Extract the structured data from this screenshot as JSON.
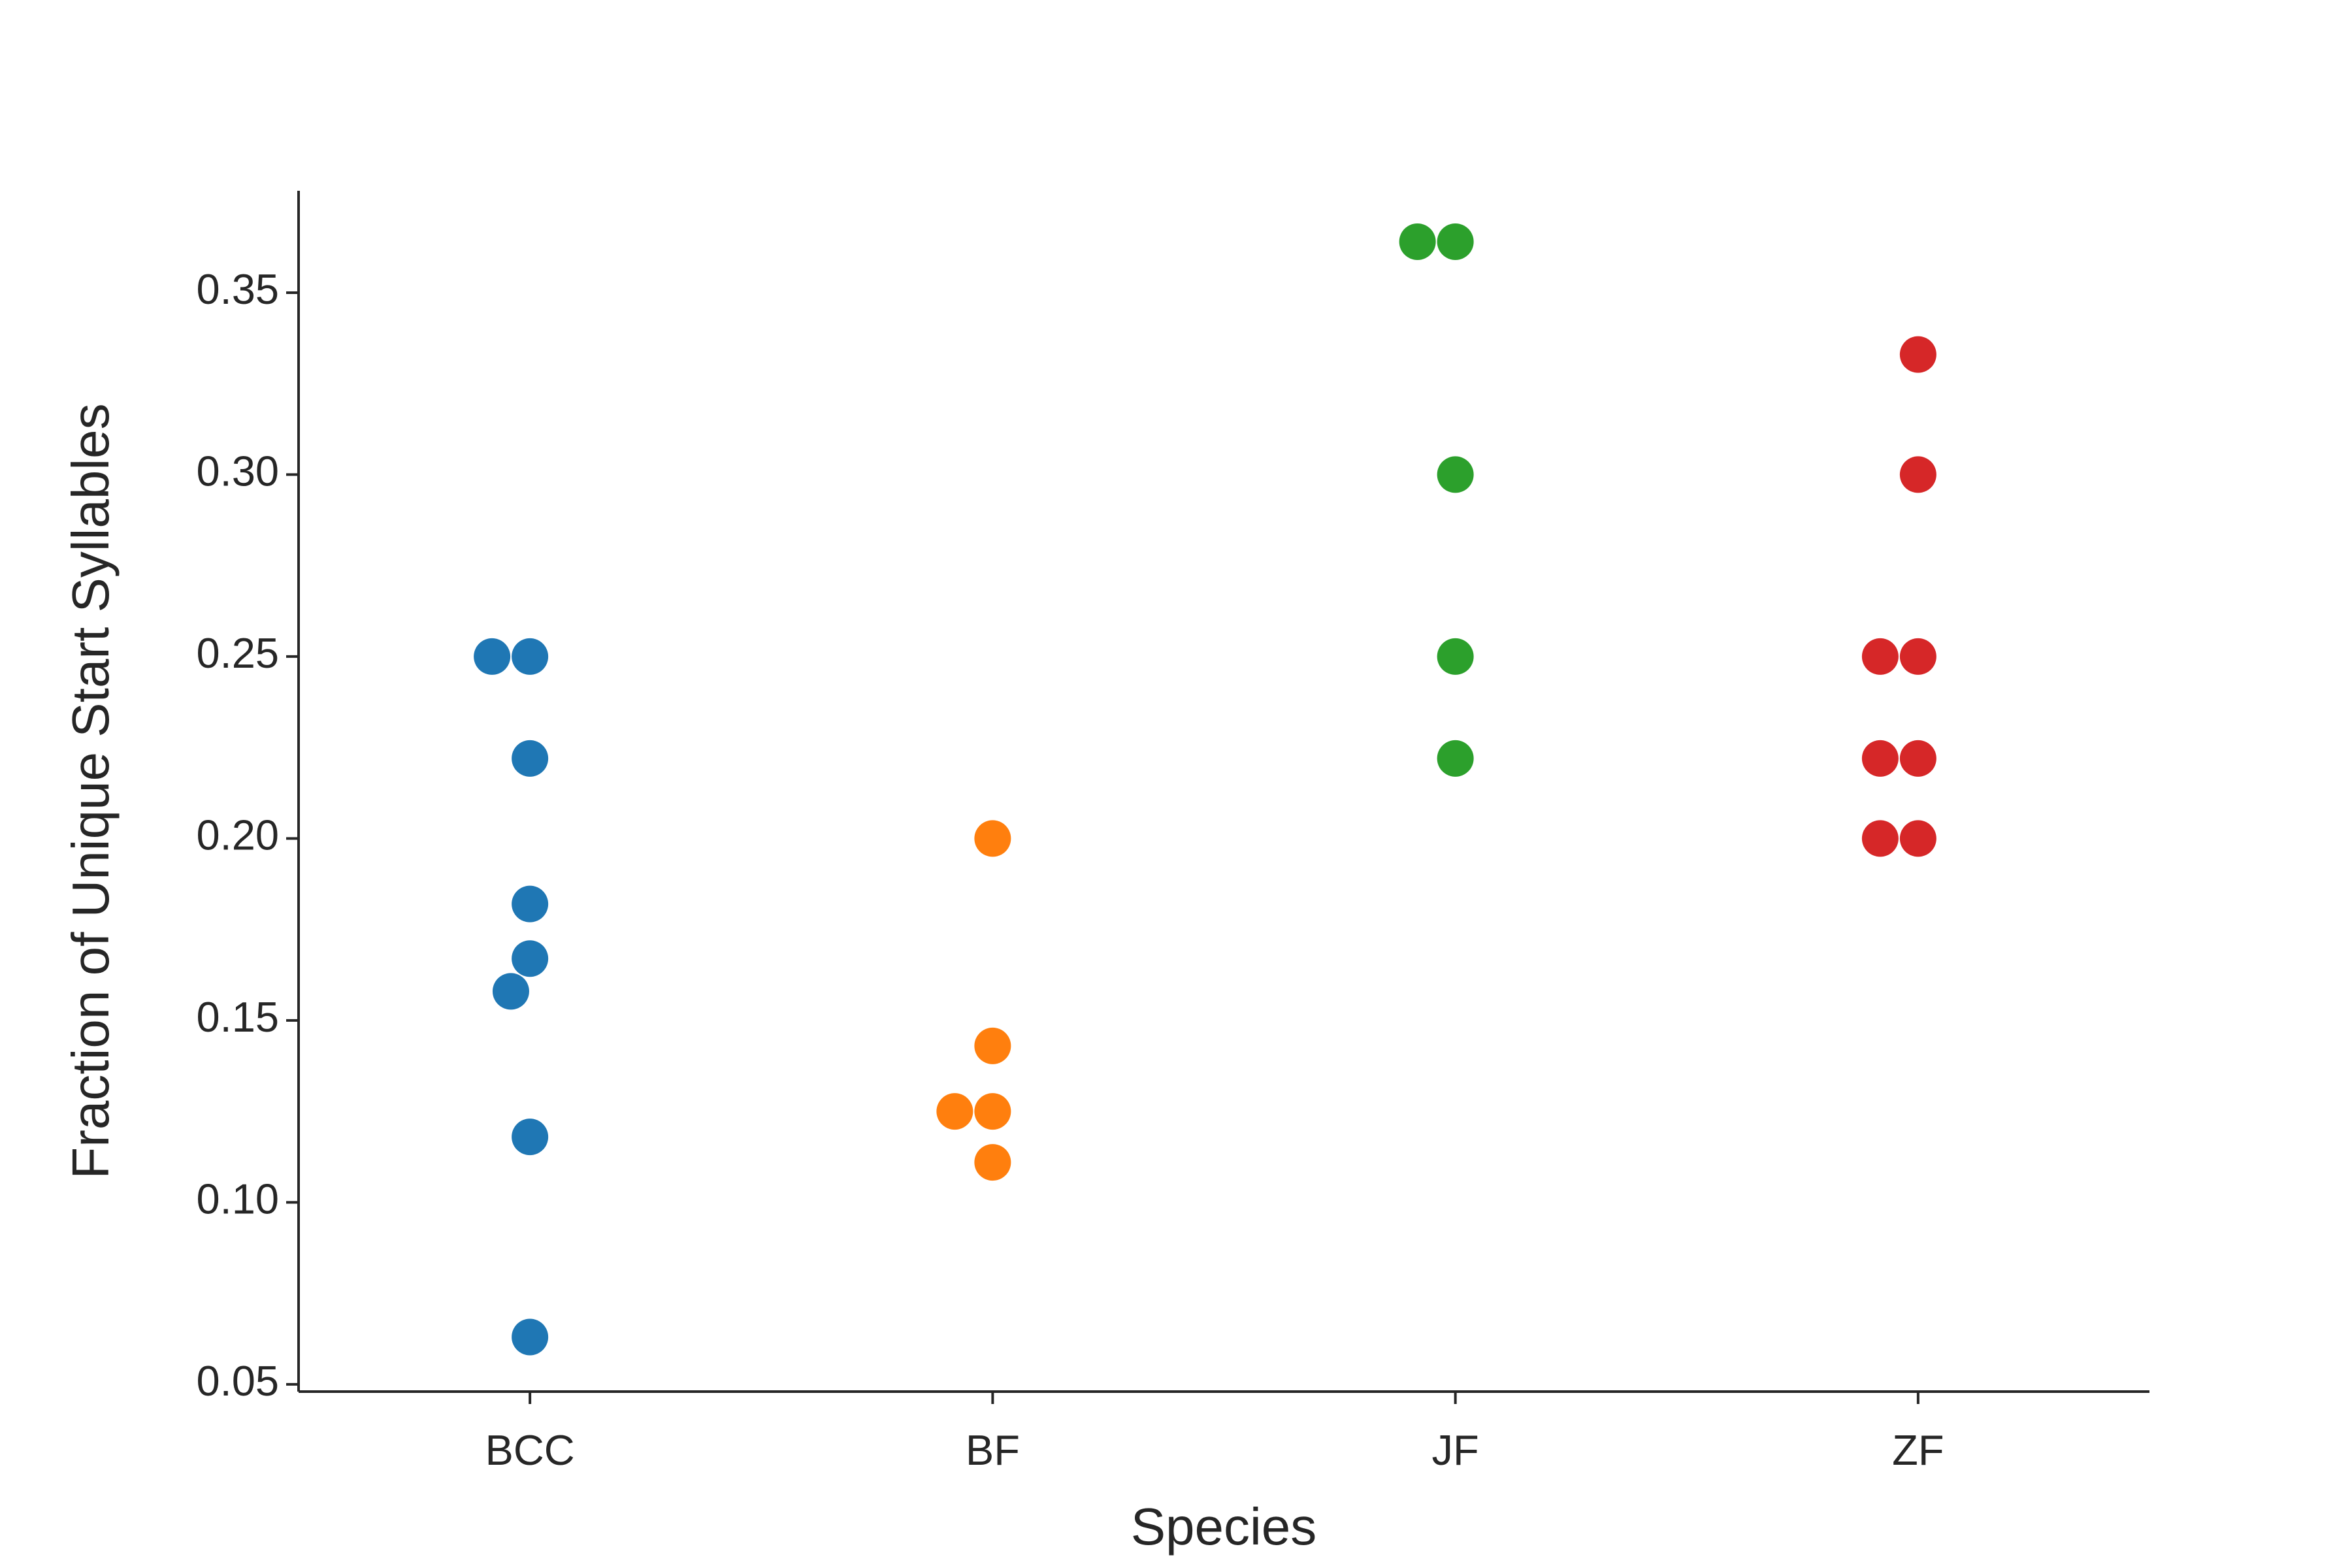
{
  "chart_data": {
    "type": "swarm",
    "x_label": "Species",
    "y_label": "Fraction of Unique Start Syllables",
    "groups": [
      {
        "category": "BCC",
        "color": "#1f77b4",
        "values": [
          0.25,
          0.25,
          0.222,
          0.182,
          0.167,
          0.158,
          0.118,
          0.063
        ]
      },
      {
        "category": "BF",
        "color": "#ff7f0e",
        "values": [
          0.2,
          0.143,
          0.125,
          0.125,
          0.111
        ]
      },
      {
        "category": "JF",
        "color": "#2ca02c",
        "values": [
          0.364,
          0.364,
          0.3,
          0.25,
          0.222
        ]
      },
      {
        "category": "ZF",
        "color": "#d62728",
        "values": [
          0.333,
          0.3,
          0.25,
          0.25,
          0.222,
          0.222,
          0.2,
          0.2
        ]
      }
    ],
    "ylim": [
      0.048,
      0.378
    ],
    "yticks": [
      {
        "value": 0.05,
        "label": "0.05"
      },
      {
        "value": 0.1,
        "label": "0.10"
      },
      {
        "value": 0.15,
        "label": "0.15"
      },
      {
        "value": 0.2,
        "label": "0.20"
      },
      {
        "value": 0.25,
        "label": "0.25"
      },
      {
        "value": 0.3,
        "label": "0.30"
      },
      {
        "value": 0.35,
        "label": "0.35"
      }
    ],
    "grid": false
  }
}
